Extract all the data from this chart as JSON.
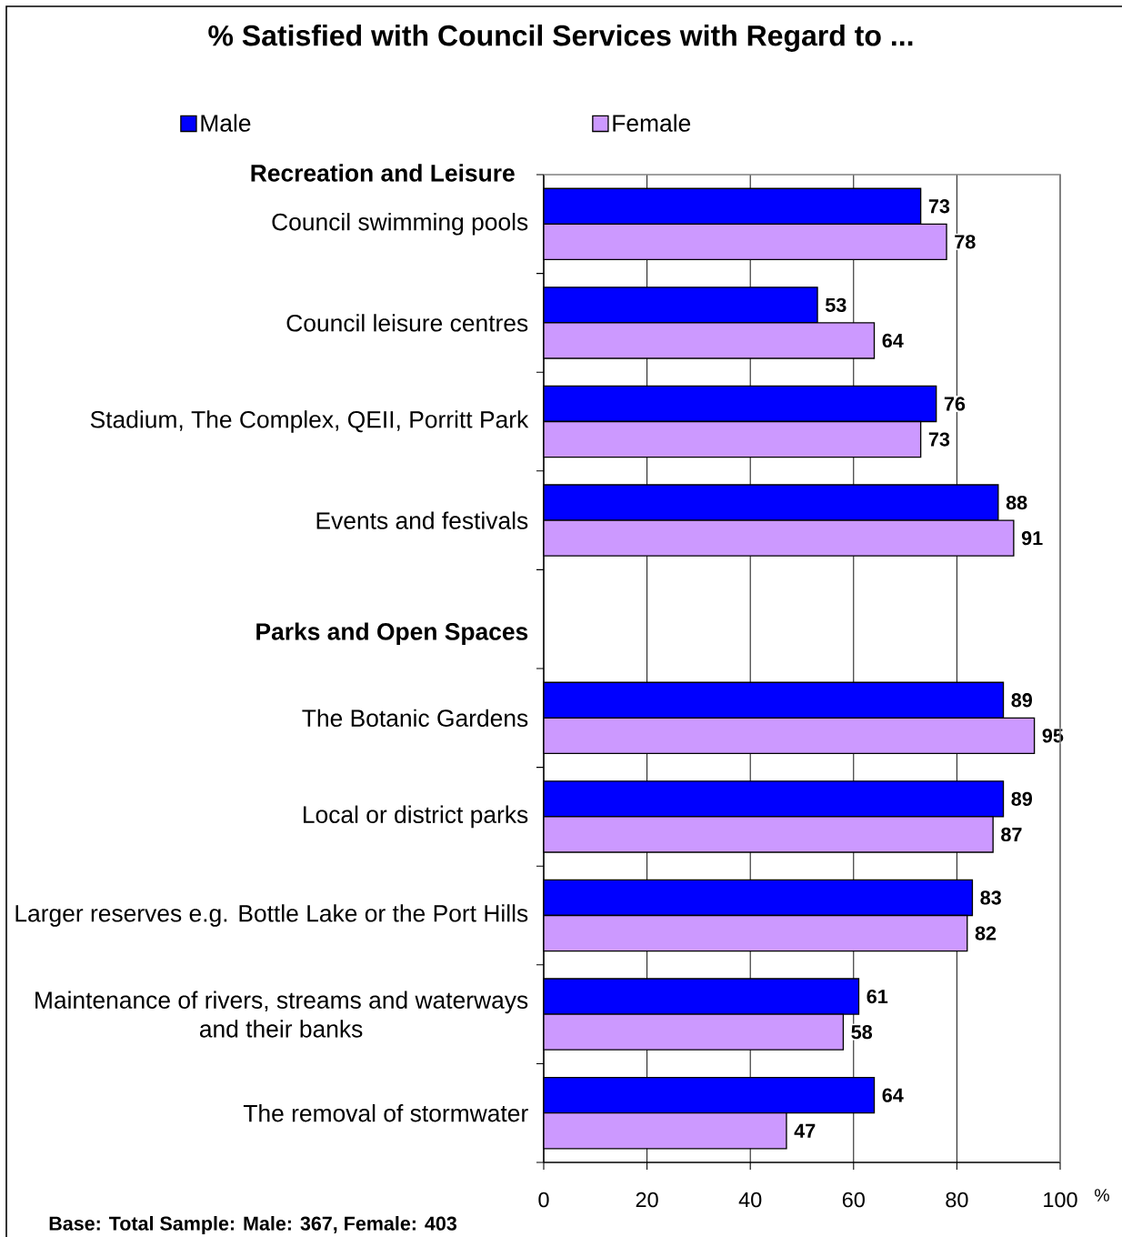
{
  "chart_data": {
    "type": "bar",
    "orientation": "horizontal",
    "title": "% Satisfied with Council Services with Regard to ...",
    "xlabel": "%",
    "categories": [
      "Council swimming pools",
      "Council leisure centres",
      "Stadium, The Complex, QEII, Porritt Park",
      "Events and festivals",
      "Parks and Open Spaces",
      "The Botanic Gardens",
      "Local or district parks",
      "Larger reserves e.g. Bottle Lake or the Port Hills",
      "Maintenance of rivers, streams and waterways and their banks",
      "The removal of stormwater"
    ],
    "series": [
      {
        "name": "Male",
        "color": "#0000ff",
        "values": [
          73,
          53,
          76,
          88,
          null,
          89,
          89,
          83,
          61,
          64
        ]
      },
      {
        "name": "Female",
        "color": "#cc99ff",
        "values": [
          78,
          64,
          73,
          91,
          null,
          95,
          87,
          82,
          58,
          47
        ]
      }
    ],
    "xlim": [
      0,
      100
    ],
    "xticks": [
      0,
      20,
      40,
      60,
      80,
      100
    ],
    "grid": "x",
    "legend": "top",
    "data_labels": true,
    "annotations": [
      "Recreation and Leisure",
      "Base:  Total Sample:  Male: 367, Female: 403"
    ]
  }
}
